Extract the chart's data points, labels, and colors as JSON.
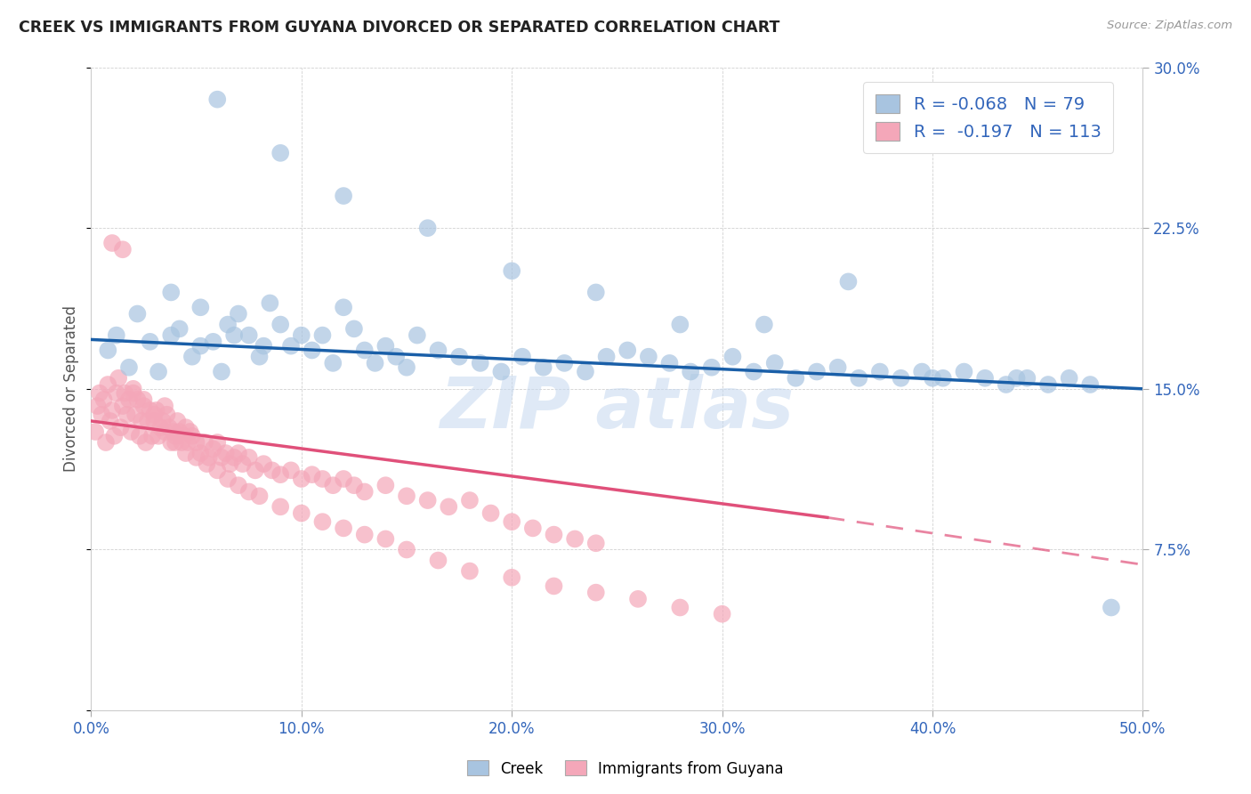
{
  "title": "CREEK VS IMMIGRANTS FROM GUYANA DIVORCED OR SEPARATED CORRELATION CHART",
  "source": "Source: ZipAtlas.com",
  "ylabel": "Divorced or Separated",
  "xlim": [
    0.0,
    0.5
  ],
  "ylim": [
    0.0,
    0.3
  ],
  "xticks": [
    0.0,
    0.1,
    0.2,
    0.3,
    0.4,
    0.5
  ],
  "yticks": [
    0.0,
    0.075,
    0.15,
    0.225,
    0.3
  ],
  "ytick_labels": [
    "",
    "7.5%",
    "15.0%",
    "22.5%",
    "30.0%"
  ],
  "xtick_labels": [
    "0.0%",
    "10.0%",
    "20.0%",
    "30.0%",
    "40.0%",
    "50.0%"
  ],
  "legend_labels": [
    "Creek",
    "Immigrants from Guyana"
  ],
  "legend_R": [
    -0.068,
    -0.197
  ],
  "legend_N": [
    79,
    113
  ],
  "blue_color": "#a8c4e0",
  "pink_color": "#f4a7b9",
  "blue_line_color": "#1a5fa8",
  "pink_line_color": "#e0507a",
  "watermark": "ZIPAtlas",
  "creek_x": [
    0.008,
    0.012,
    0.018,
    0.022,
    0.028,
    0.032,
    0.038,
    0.042,
    0.048,
    0.052,
    0.058,
    0.062,
    0.065,
    0.07,
    0.075,
    0.08,
    0.085,
    0.09,
    0.095,
    0.1,
    0.105,
    0.11,
    0.115,
    0.12,
    0.125,
    0.13,
    0.135,
    0.14,
    0.145,
    0.15,
    0.155,
    0.165,
    0.175,
    0.185,
    0.195,
    0.205,
    0.215,
    0.225,
    0.235,
    0.245,
    0.255,
    0.265,
    0.275,
    0.285,
    0.295,
    0.305,
    0.315,
    0.325,
    0.335,
    0.345,
    0.355,
    0.365,
    0.375,
    0.385,
    0.395,
    0.405,
    0.415,
    0.425,
    0.435,
    0.445,
    0.455,
    0.465,
    0.475,
    0.485,
    0.06,
    0.09,
    0.12,
    0.16,
    0.2,
    0.24,
    0.28,
    0.32,
    0.36,
    0.4,
    0.44,
    0.038,
    0.052,
    0.068,
    0.082
  ],
  "creek_y": [
    0.168,
    0.175,
    0.16,
    0.185,
    0.172,
    0.158,
    0.195,
    0.178,
    0.165,
    0.188,
    0.172,
    0.158,
    0.18,
    0.185,
    0.175,
    0.165,
    0.19,
    0.18,
    0.17,
    0.175,
    0.168,
    0.175,
    0.162,
    0.188,
    0.178,
    0.168,
    0.162,
    0.17,
    0.165,
    0.16,
    0.175,
    0.168,
    0.165,
    0.162,
    0.158,
    0.165,
    0.16,
    0.162,
    0.158,
    0.165,
    0.168,
    0.165,
    0.162,
    0.158,
    0.16,
    0.165,
    0.158,
    0.162,
    0.155,
    0.158,
    0.16,
    0.155,
    0.158,
    0.155,
    0.158,
    0.155,
    0.158,
    0.155,
    0.152,
    0.155,
    0.152,
    0.155,
    0.152,
    0.048,
    0.285,
    0.26,
    0.24,
    0.225,
    0.205,
    0.195,
    0.18,
    0.18,
    0.2,
    0.155,
    0.155,
    0.175,
    0.17,
    0.175,
    0.17
  ],
  "guyana_x": [
    0.002,
    0.003,
    0.004,
    0.005,
    0.006,
    0.007,
    0.008,
    0.009,
    0.01,
    0.011,
    0.012,
    0.013,
    0.014,
    0.015,
    0.016,
    0.017,
    0.018,
    0.019,
    0.02,
    0.021,
    0.022,
    0.023,
    0.024,
    0.025,
    0.026,
    0.027,
    0.028,
    0.029,
    0.03,
    0.031,
    0.032,
    0.033,
    0.034,
    0.035,
    0.036,
    0.037,
    0.038,
    0.039,
    0.04,
    0.041,
    0.042,
    0.043,
    0.044,
    0.045,
    0.046,
    0.047,
    0.048,
    0.05,
    0.052,
    0.054,
    0.056,
    0.058,
    0.06,
    0.062,
    0.064,
    0.066,
    0.068,
    0.07,
    0.072,
    0.075,
    0.078,
    0.082,
    0.086,
    0.09,
    0.095,
    0.1,
    0.105,
    0.11,
    0.115,
    0.12,
    0.125,
    0.13,
    0.14,
    0.15,
    0.16,
    0.17,
    0.18,
    0.19,
    0.2,
    0.21,
    0.22,
    0.23,
    0.24,
    0.01,
    0.015,
    0.02,
    0.025,
    0.03,
    0.035,
    0.04,
    0.045,
    0.05,
    0.055,
    0.06,
    0.065,
    0.07,
    0.075,
    0.08,
    0.09,
    0.1,
    0.11,
    0.12,
    0.13,
    0.14,
    0.15,
    0.165,
    0.18,
    0.2,
    0.22,
    0.24,
    0.26,
    0.28,
    0.3
  ],
  "guyana_y": [
    0.13,
    0.142,
    0.148,
    0.138,
    0.145,
    0.125,
    0.152,
    0.135,
    0.14,
    0.128,
    0.148,
    0.155,
    0.132,
    0.142,
    0.148,
    0.138,
    0.145,
    0.13,
    0.15,
    0.138,
    0.145,
    0.128,
    0.135,
    0.142,
    0.125,
    0.135,
    0.14,
    0.128,
    0.135,
    0.14,
    0.128,
    0.132,
    0.135,
    0.142,
    0.138,
    0.132,
    0.125,
    0.13,
    0.128,
    0.135,
    0.13,
    0.125,
    0.128,
    0.132,
    0.125,
    0.13,
    0.128,
    0.125,
    0.12,
    0.125,
    0.118,
    0.122,
    0.125,
    0.118,
    0.12,
    0.115,
    0.118,
    0.12,
    0.115,
    0.118,
    0.112,
    0.115,
    0.112,
    0.11,
    0.112,
    0.108,
    0.11,
    0.108,
    0.105,
    0.108,
    0.105,
    0.102,
    0.105,
    0.1,
    0.098,
    0.095,
    0.098,
    0.092,
    0.088,
    0.085,
    0.082,
    0.08,
    0.078,
    0.218,
    0.215,
    0.148,
    0.145,
    0.138,
    0.13,
    0.125,
    0.12,
    0.118,
    0.115,
    0.112,
    0.108,
    0.105,
    0.102,
    0.1,
    0.095,
    0.092,
    0.088,
    0.085,
    0.082,
    0.08,
    0.075,
    0.07,
    0.065,
    0.062,
    0.058,
    0.055,
    0.052,
    0.048,
    0.045
  ]
}
